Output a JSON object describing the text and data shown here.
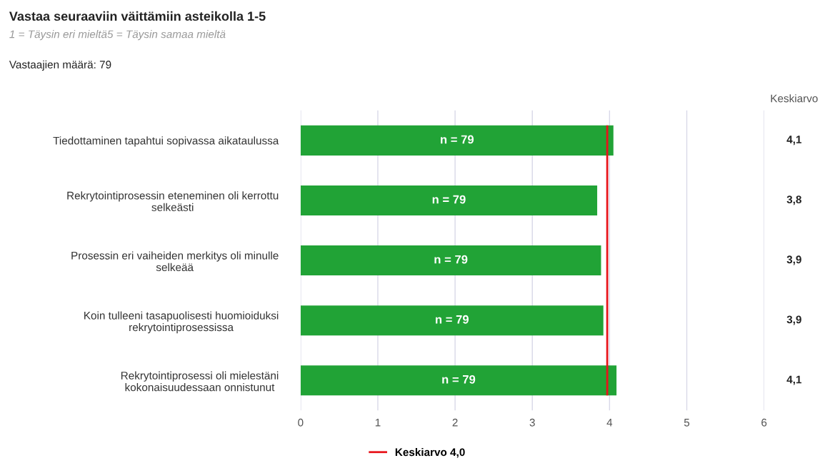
{
  "chart_data": {
    "type": "bar",
    "orientation": "horizontal",
    "title": "Vastaa seuraaviin väittämiin asteikolla 1-5",
    "subtitle": "1 = Täysin eri mieltä5 = Täysin samaa mieltä",
    "categories": [
      "Tiedottaminen tapahtui sopivassa aikataulussa",
      "Rekrytointiprosessin eteneminen oli kerrottu selkeästi",
      "Prosessin eri vaiheiden merkitys oli minulle selkeää",
      "Koin tulleeni tasapuolisesti huomioiduksi rekrytointiprosessissa",
      "Rekrytointiprosessi oli mielestäni kokonaisuudessaan onnistunut"
    ],
    "values": [
      4.05,
      3.84,
      3.89,
      3.92,
      4.09
    ],
    "value_labels": [
      "4,1",
      "3,8",
      "3,9",
      "3,9",
      "4,1"
    ],
    "color": "#21a336",
    "xlim": [
      0,
      6
    ],
    "xticks": [
      0,
      1,
      2,
      3,
      4,
      5,
      6
    ],
    "grid": "x",
    "legend": "bottom",
    "ref_lines": [
      {
        "axis": "x",
        "value": 3.97,
        "label": "Keskiarvo 4,0",
        "color": "#e8141b"
      }
    ],
    "annotations": [
      "Vastaajien määrä: 79",
      "Keskiarvo",
      "n = 79",
      "n = 79",
      "n = 79",
      "n = 79",
      "n = 79"
    ]
  }
}
